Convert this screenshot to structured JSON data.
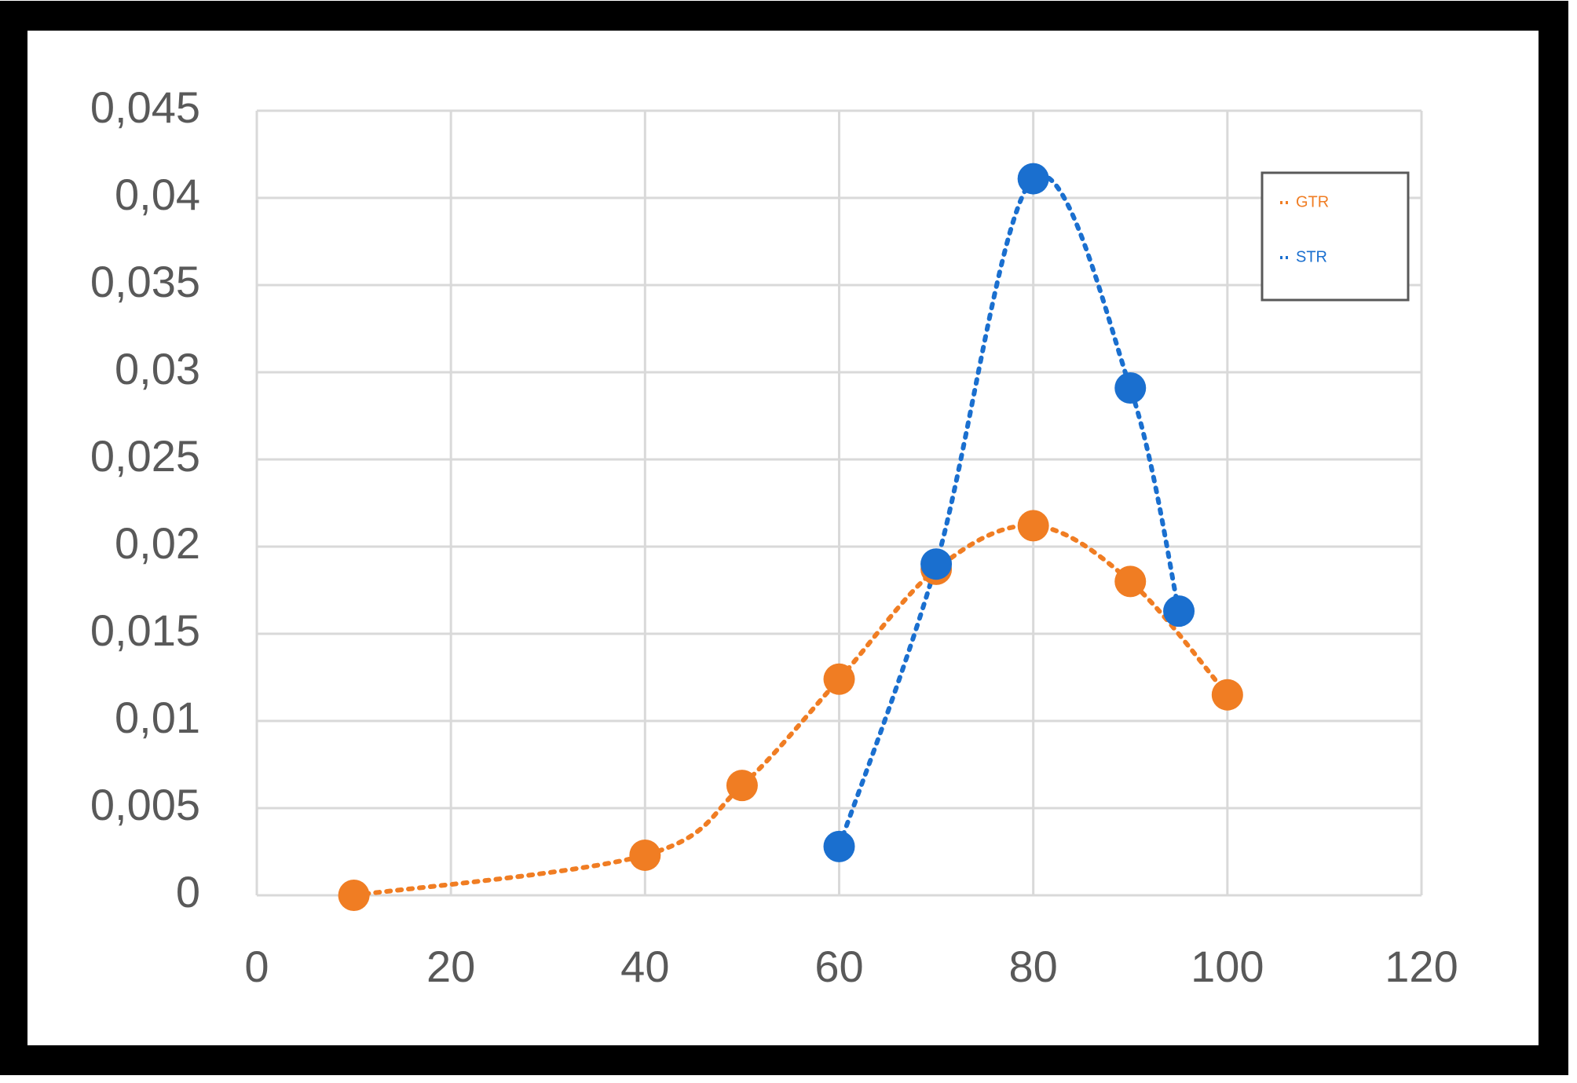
{
  "chart_data": {
    "type": "scatter",
    "series": [
      {
        "name": "GTR",
        "color": "#f07d23",
        "x": [
          10,
          40,
          50,
          60,
          70,
          80,
          90,
          100
        ],
        "values": [
          0,
          0.0023,
          0.0063,
          0.0124,
          0.0187,
          0.0212,
          0.018,
          0.0115
        ]
      },
      {
        "name": "STR",
        "color": "#1a6fcf",
        "x": [
          60,
          70,
          80,
          90,
          95
        ],
        "values": [
          0.0028,
          0.019,
          0.0411,
          0.0291,
          0.0163
        ]
      }
    ],
    "xlim": [
      0,
      120
    ],
    "xticks": [
      0,
      20,
      40,
      60,
      80,
      100,
      120
    ],
    "ylim": [
      0,
      0.045
    ],
    "yticks": [
      0,
      {
        "value": 0.005,
        "label": "0,005"
      },
      {
        "value": 0.01,
        "label": "0,01"
      },
      {
        "value": 0.015,
        "label": "0,015"
      },
      {
        "value": 0.02,
        "label": "0,02"
      },
      {
        "value": 0.025,
        "label": "0,025"
      },
      {
        "value": 0.03,
        "label": "0,03"
      },
      {
        "value": 0.035,
        "label": "0,035"
      },
      {
        "value": 0.04,
        "label": "0,04"
      },
      {
        "value": 0.045,
        "label": "0,045"
      }
    ],
    "grid": true,
    "legend": "top-right",
    "smooth": true,
    "line_style": "dotted"
  }
}
